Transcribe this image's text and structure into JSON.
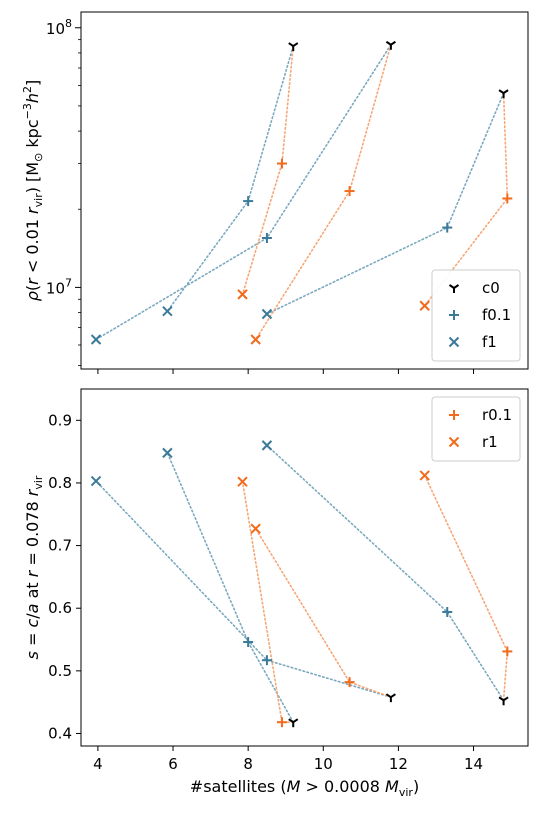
{
  "colors": {
    "c": "#000000",
    "f": "#3b7a99",
    "r": "#f26b1d",
    "f_line": "#7aa9bf",
    "r_line": "#f6a676"
  },
  "chart_data": [
    {
      "type": "scatter",
      "yscale": "log",
      "ylabel": "ρ(r < 0.01 r_vir) [M⊙ kpc⁻³ h²]",
      "xlim": [
        3.55,
        15.45
      ],
      "ylim": [
        4850000.0,
        115000000.0
      ],
      "yticks": [
        {
          "value": 10000000,
          "base": "10",
          "exp": "7"
        },
        {
          "value": 100000000,
          "base": "10",
          "exp": "8"
        }
      ],
      "legend": {
        "position": "lower-right",
        "entries": [
          {
            "key": "c0",
            "marker": "tri",
            "color": "c"
          },
          {
            "key": "f0.1",
            "marker": "plus",
            "color": "f"
          },
          {
            "key": "f1",
            "marker": "x",
            "color": "f"
          }
        ]
      },
      "series": [
        {
          "name": "c0",
          "marker": "tri",
          "color": "c",
          "points": [
            [
              9.2,
              85000000.0
            ],
            [
              11.8,
              86000000.0
            ],
            [
              14.8,
              56000000.0
            ]
          ]
        },
        {
          "name": "f0.1",
          "marker": "plus",
          "color": "f",
          "points": [
            [
              8.0,
              21500000.0
            ],
            [
              8.5,
              15500000.0
            ],
            [
              13.3,
              17000000.0
            ]
          ]
        },
        {
          "name": "f1",
          "marker": "x",
          "color": "f",
          "points": [
            [
              3.95,
              6300000.0
            ],
            [
              5.85,
              8100000.0
            ],
            [
              8.5,
              7900000.0
            ]
          ]
        },
        {
          "name": "r0.1",
          "marker": "plus",
          "color": "r",
          "points": [
            [
              8.9,
              30000000.0
            ],
            [
              10.7,
              23500000.0
            ],
            [
              14.9,
              22000000.0
            ]
          ]
        },
        {
          "name": "r1",
          "marker": "x",
          "color": "r",
          "points": [
            [
              7.85,
              9400000.0
            ],
            [
              8.2,
              6300000.0
            ],
            [
              12.7,
              8500000.0
            ]
          ]
        }
      ],
      "links": [
        {
          "color": "f_line",
          "points": [
            [
              9.2,
              85000000.0
            ],
            [
              8.0,
              21500000.0
            ],
            [
              5.85,
              8100000.0
            ]
          ]
        },
        {
          "color": "f_line",
          "points": [
            [
              11.8,
              86000000.0
            ],
            [
              8.5,
              15500000.0
            ],
            [
              3.95,
              6300000.0
            ]
          ]
        },
        {
          "color": "f_line",
          "points": [
            [
              14.8,
              56000000.0
            ],
            [
              13.3,
              17000000.0
            ],
            [
              8.5,
              7900000.0
            ]
          ]
        },
        {
          "color": "r_line",
          "points": [
            [
              9.2,
              85000000.0
            ],
            [
              8.9,
              30000000.0
            ],
            [
              7.85,
              9400000.0
            ]
          ]
        },
        {
          "color": "r_line",
          "points": [
            [
              11.8,
              86000000.0
            ],
            [
              10.7,
              23500000.0
            ],
            [
              8.2,
              6300000.0
            ]
          ]
        },
        {
          "color": "r_line",
          "points": [
            [
              14.8,
              56000000.0
            ],
            [
              14.9,
              22000000.0
            ],
            [
              12.7,
              8500000.0
            ]
          ]
        }
      ]
    },
    {
      "type": "scatter",
      "yscale": "linear",
      "xlabel": "#satellites (M > 0.0008 M_vir)",
      "ylabel": "s = c/a at r = 0.078 r_vir",
      "xlim": [
        3.55,
        15.45
      ],
      "ylim": [
        0.38,
        0.95
      ],
      "xticks": [
        4,
        6,
        8,
        10,
        12,
        14
      ],
      "yticks": [
        0.4,
        0.5,
        0.6,
        0.7,
        0.8,
        0.9
      ],
      "legend": {
        "position": "top-right",
        "entries": [
          {
            "key": "r0.1",
            "marker": "plus",
            "color": "r"
          },
          {
            "key": "r1",
            "marker": "x",
            "color": "r"
          }
        ]
      },
      "series": [
        {
          "name": "c0",
          "marker": "tri",
          "color": "c",
          "points": [
            [
              9.2,
              0.418
            ],
            [
              11.8,
              0.458
            ],
            [
              14.8,
              0.453
            ]
          ]
        },
        {
          "name": "f0.1",
          "marker": "plus",
          "color": "f",
          "points": [
            [
              8.0,
              0.546
            ],
            [
              8.5,
              0.517
            ],
            [
              13.3,
              0.594
            ]
          ]
        },
        {
          "name": "f1",
          "marker": "x",
          "color": "f",
          "points": [
            [
              3.95,
              0.803
            ],
            [
              5.85,
              0.848
            ],
            [
              8.5,
              0.86
            ]
          ]
        },
        {
          "name": "r0.1",
          "marker": "plus",
          "color": "r",
          "points": [
            [
              8.9,
              0.418
            ],
            [
              10.7,
              0.482
            ],
            [
              14.9,
              0.531
            ]
          ]
        },
        {
          "name": "r1",
          "marker": "x",
          "color": "r",
          "points": [
            [
              7.85,
              0.802
            ],
            [
              8.2,
              0.727
            ],
            [
              12.7,
              0.812
            ]
          ]
        }
      ],
      "links": [
        {
          "color": "f_line",
          "points": [
            [
              9.2,
              0.418
            ],
            [
              8.0,
              0.546
            ],
            [
              5.85,
              0.848
            ]
          ]
        },
        {
          "color": "f_line",
          "points": [
            [
              11.8,
              0.458
            ],
            [
              8.5,
              0.517
            ],
            [
              3.95,
              0.803
            ]
          ]
        },
        {
          "color": "f_line",
          "points": [
            [
              14.8,
              0.453
            ],
            [
              13.3,
              0.594
            ],
            [
              8.5,
              0.86
            ]
          ]
        },
        {
          "color": "r_line",
          "points": [
            [
              9.2,
              0.418
            ],
            [
              8.9,
              0.418
            ],
            [
              7.85,
              0.802
            ]
          ]
        },
        {
          "color": "r_line",
          "points": [
            [
              11.8,
              0.458
            ],
            [
              10.7,
              0.482
            ],
            [
              8.2,
              0.727
            ]
          ]
        },
        {
          "color": "r_line",
          "points": [
            [
              14.8,
              0.453
            ],
            [
              14.9,
              0.531
            ],
            [
              12.7,
              0.812
            ]
          ]
        }
      ]
    }
  ]
}
